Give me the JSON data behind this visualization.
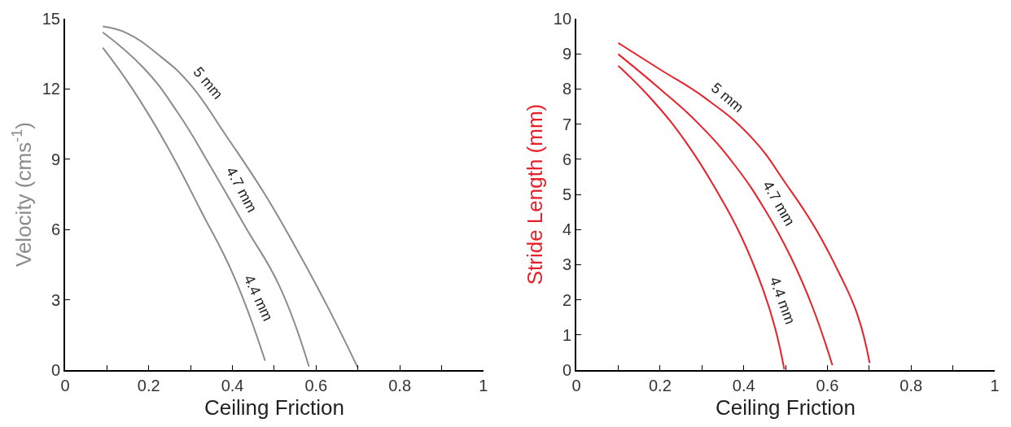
{
  "chart_data": [
    {
      "type": "line",
      "xlabel": "Ceiling Friction",
      "ylabel": "Velocity (cms$^{-1}$)",
      "xlim": [
        0,
        1
      ],
      "ylim": [
        0,
        15
      ],
      "xticks": [
        0,
        {
          "value": 0.1,
          "label": null
        },
        0.2,
        {
          "value": 0.3,
          "label": null
        },
        0.4,
        {
          "value": 0.5,
          "label": null
        },
        0.6,
        {
          "value": 0.7,
          "label": null
        },
        0.8,
        {
          "value": 0.9,
          "label": null
        },
        1
      ],
      "yticks": [
        0,
        3,
        6,
        9,
        12,
        15
      ],
      "legend": false,
      "marker": "none",
      "line_style": "solid",
      "series": [
        {
          "name": "5 mm",
          "color": "#8c8c8c",
          "x": [
            0.09,
            0.147,
            0.228,
            0.296,
            0.39,
            0.478,
            0.559,
            0.627,
            0.7
          ],
          "values": [
            14.67,
            14.39,
            13.39,
            12.26,
            9.87,
            7.49,
            4.98,
            2.72,
            0.09
          ]
        },
        {
          "name": "4.7 mm",
          "color": "#8c8c8c",
          "x": [
            0.09,
            0.188,
            0.269,
            0.35,
            0.431,
            0.512,
            0.583
          ],
          "values": [
            14.42,
            12.89,
            11.0,
            8.62,
            6.11,
            3.6,
            0.15
          ]
        },
        {
          "name": "4.4 mm",
          "color": "#8c8c8c",
          "x": [
            0.09,
            0.161,
            0.242,
            0.323,
            0.404,
            0.478
          ],
          "values": [
            13.76,
            12.0,
            9.62,
            6.86,
            3.98,
            0.4
          ]
        }
      ]
    },
    {
      "type": "line",
      "xlabel": "Ceiling Friction",
      "ylabel": "Stride Length (mm)",
      "xlim": [
        0,
        1
      ],
      "ylim": [
        0,
        10
      ],
      "xticks": [
        0,
        {
          "value": 0.1,
          "label": null
        },
        0.2,
        {
          "value": 0.3,
          "label": null
        },
        0.4,
        {
          "value": 0.5,
          "label": null
        },
        0.6,
        {
          "value": 0.7,
          "label": null
        },
        0.8,
        {
          "value": 0.9,
          "label": null
        },
        1
      ],
      "yticks": [
        0,
        1,
        2,
        3,
        4,
        5,
        6,
        7,
        8,
        9,
        10
      ],
      "legend": false,
      "marker": "none",
      "line_style": "solid",
      "series": [
        {
          "name": "5 mm",
          "color": "#e8202a",
          "x": [
            0.1,
            0.198,
            0.308,
            0.417,
            0.504,
            0.57,
            0.628,
            0.672,
            0.701
          ],
          "values": [
            9.31,
            8.57,
            7.74,
            6.64,
            5.25,
            4.06,
            2.76,
            1.57,
            0.2
          ]
        },
        {
          "name": "4.7 mm",
          "color": "#e8202a",
          "x": [
            0.1,
            0.198,
            0.293,
            0.38,
            0.453,
            0.512,
            0.563,
            0.612
          ],
          "values": [
            8.99,
            8.02,
            7.0,
            5.81,
            4.52,
            3.23,
            1.84,
            0.14
          ]
        },
        {
          "name": "4.4 mm",
          "color": "#e8202a",
          "x": [
            0.1,
            0.184,
            0.264,
            0.337,
            0.395,
            0.446,
            0.475,
            0.497
          ],
          "values": [
            8.66,
            7.65,
            6.45,
            5.07,
            3.78,
            2.3,
            1.2,
            0.02
          ]
        }
      ]
    }
  ]
}
